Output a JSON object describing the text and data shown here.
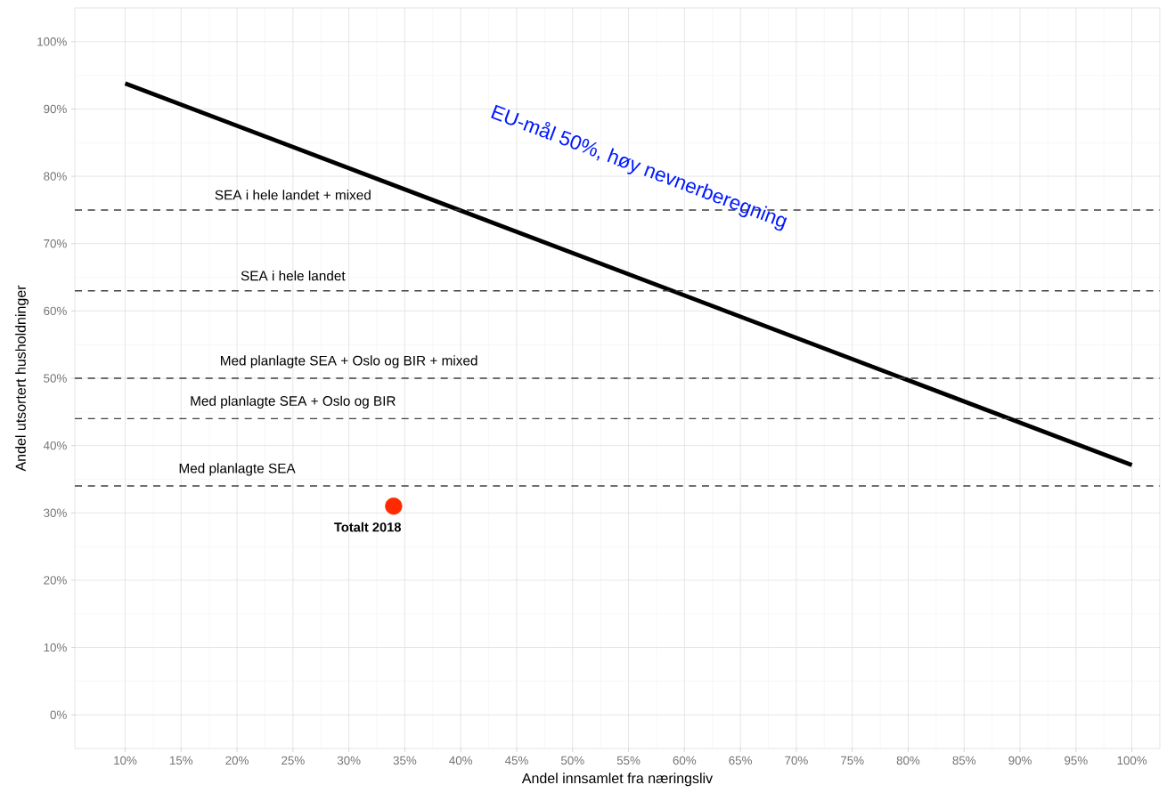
{
  "chart_data": {
    "type": "line",
    "xlabel": "Andel innsamlet fra næringsliv",
    "ylabel": "Andel utsortert husholdninger",
    "xlim": [
      5.5,
      102.5
    ],
    "ylim": [
      -5,
      105
    ],
    "xticks": [
      {
        "value": 10,
        "label": "10%"
      },
      {
        "value": 15,
        "label": "15%"
      },
      {
        "value": 20,
        "label": "20%"
      },
      {
        "value": 25,
        "label": "25%"
      },
      {
        "value": 30,
        "label": "30%"
      },
      {
        "value": 35,
        "label": "35%"
      },
      {
        "value": 40,
        "label": "40%"
      },
      {
        "value": 45,
        "label": "45%"
      },
      {
        "value": 50,
        "label": "50%"
      },
      {
        "value": 55,
        "label": "55%"
      },
      {
        "value": 60,
        "label": "60%"
      },
      {
        "value": 65,
        "label": "65%"
      },
      {
        "value": 70,
        "label": "70%"
      },
      {
        "value": 75,
        "label": "75%"
      },
      {
        "value": 80,
        "label": "80%"
      },
      {
        "value": 85,
        "label": "85%"
      },
      {
        "value": 90,
        "label": "90%"
      },
      {
        "value": 95,
        "label": "95%"
      },
      {
        "value": 100,
        "label": "100%"
      }
    ],
    "yticks": [
      {
        "value": 0,
        "label": "0%"
      },
      {
        "value": 10,
        "label": "10%"
      },
      {
        "value": 20,
        "label": "20%"
      },
      {
        "value": 30,
        "label": "30%"
      },
      {
        "value": 40,
        "label": "40%"
      },
      {
        "value": 50,
        "label": "50%"
      },
      {
        "value": 60,
        "label": "60%"
      },
      {
        "value": 70,
        "label": "70%"
      },
      {
        "value": 80,
        "label": "80%"
      },
      {
        "value": 90,
        "label": "90%"
      },
      {
        "value": 100,
        "label": "100%"
      }
    ],
    "grid": true,
    "series": [
      {
        "color": "#000000",
        "x": [
          10,
          100
        ],
        "values": [
          93.8,
          37.1
        ],
        "marker": "none",
        "line_style": "solid"
      },
      {
        "type": "scatter",
        "name": "Totalt 2018",
        "color": "#ff2a00",
        "x": [
          34
        ],
        "values": [
          31
        ],
        "marker": "circle"
      }
    ],
    "ref_lines": [
      {
        "axis": "y",
        "value": 75,
        "color": "#404040",
        "line_style": "dashed"
      },
      {
        "axis": "y",
        "value": 63,
        "color": "#404040",
        "line_style": "dashed"
      },
      {
        "axis": "y",
        "value": 50,
        "color": "#404040",
        "line_style": "dashed"
      },
      {
        "axis": "y",
        "value": 44,
        "color": "#404040",
        "line_style": "dashed"
      },
      {
        "axis": "y",
        "value": 34,
        "color": "#404040",
        "line_style": "dashed"
      }
    ],
    "annotations": [
      "EU-mål 50%, høy nevnerberegning",
      {
        "text": "SEA i hele landet + mixed",
        "x": 25,
        "y": 75
      },
      {
        "text": "SEA i hele landet",
        "x": 25,
        "y": 63
      },
      {
        "text": "Med planlagte SEA + Oslo og BIR + mixed",
        "x": 30,
        "y": 50
      },
      {
        "text": "Med planlagte SEA + Oslo og BIR",
        "x": 25,
        "y": 44
      },
      {
        "text": "Med planlagte SEA",
        "x": 20,
        "y": 34
      }
    ]
  }
}
